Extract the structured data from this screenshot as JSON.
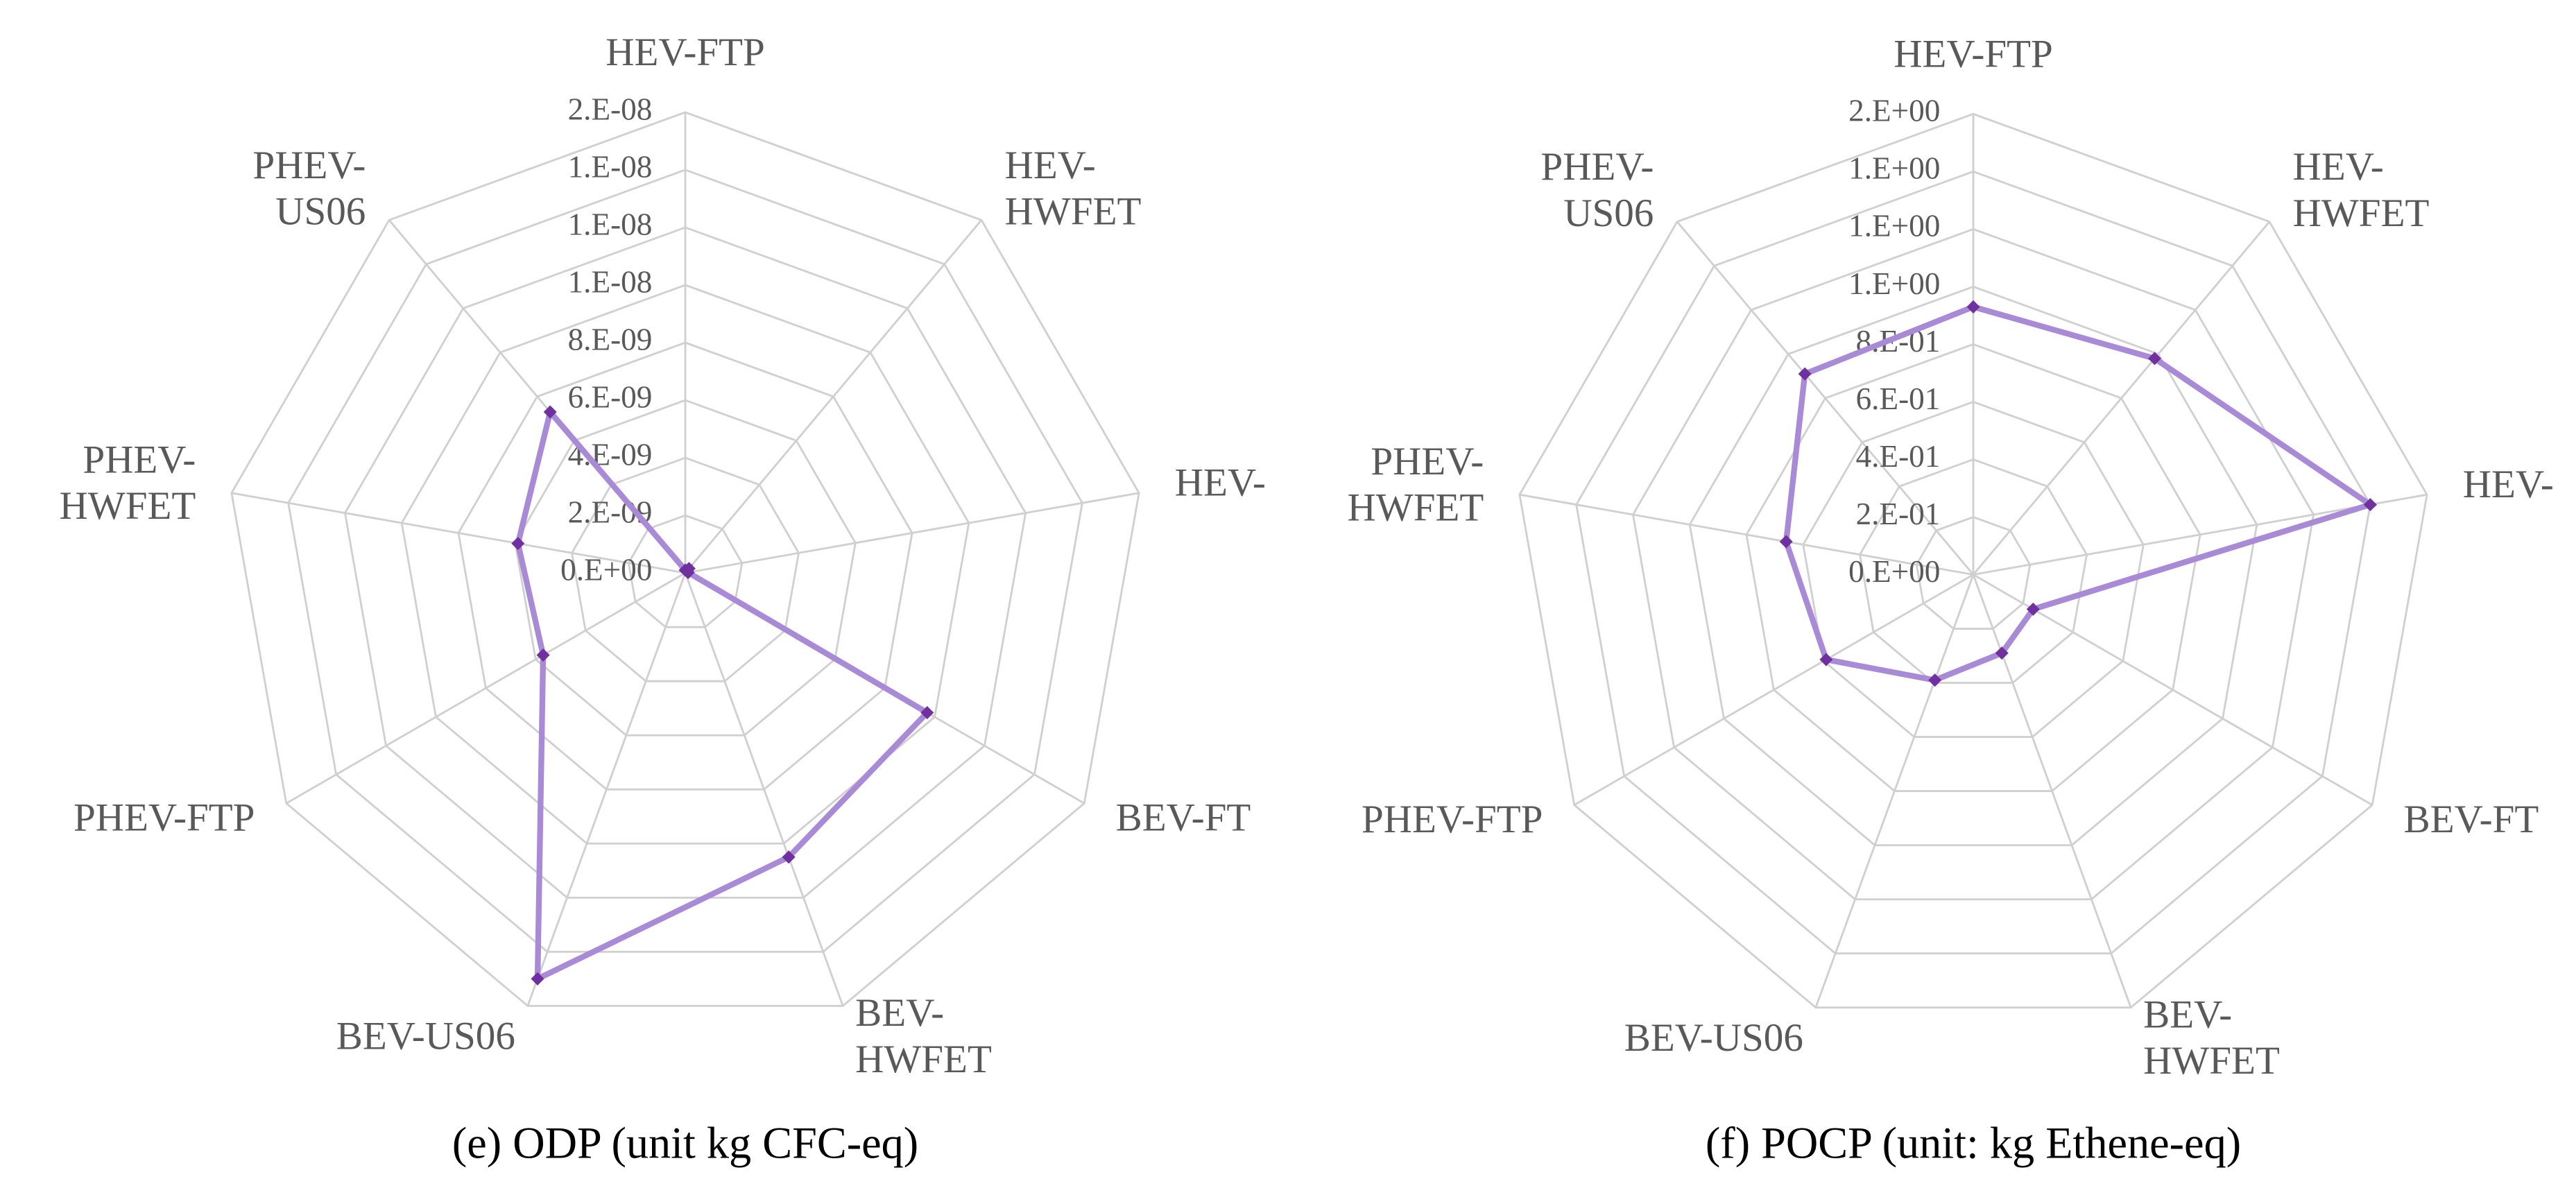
{
  "chart_data": [
    {
      "type": "radar",
      "caption": "(e) ODP (unit kg CFC-eq)",
      "categories": [
        "HEV-FTP",
        "HEV-\nHWFET",
        "HEV-",
        "BEV-FT",
        "BEV-\nHWFET",
        "BEV-US06",
        "PHEV-FTP",
        "PHEV-\nHWFET",
        "PHEV-\nUS06"
      ],
      "values": [
        1e-10,
        2e-10,
        1e-10,
        9.7e-09,
        1.05e-08,
        1.5e-08,
        5.7e-09,
        5.9e-09,
        7.3e-09
      ],
      "color": "#7030a0",
      "line_color": "#a98ad6",
      "ylim": [
        0,
        1.6e-08
      ],
      "yticks": [
        {
          "value": 0,
          "label": "0.E+00"
        },
        {
          "value": 2e-09,
          "label": "2.E-09"
        },
        {
          "value": 4e-09,
          "label": "4.E-09"
        },
        {
          "value": 6e-09,
          "label": "6.E-09"
        },
        {
          "value": 8e-09,
          "label": "8.E-09"
        },
        {
          "value": 1e-08,
          "label": "1.E-08"
        },
        {
          "value": 1.2e-08,
          "label": "1.E-08"
        },
        {
          "value": 1.4e-08,
          "label": "1.E-08"
        },
        {
          "value": 1.6e-08,
          "label": "2.E-08"
        }
      ],
      "grid": true
    },
    {
      "type": "radar",
      "caption": "(f) POCP (unit: kg Ethene-eq)",
      "categories": [
        "HEV-FTP",
        "HEV-\nHWFET",
        "HEV-",
        "BEV-FT",
        "BEV-\nHWFET",
        "BEV-US06",
        "PHEV-FTP",
        "PHEV-\nHWFET",
        "PHEV-\nUS06"
      ],
      "values": [
        0.93,
        0.98,
        1.4,
        0.24,
        0.29,
        0.39,
        0.59,
        0.66,
        0.91
      ],
      "color": "#7030a0",
      "line_color": "#a98ad6",
      "ylim": [
        0,
        1.6
      ],
      "yticks": [
        {
          "value": 0,
          "label": "0.E+00"
        },
        {
          "value": 0.2,
          "label": "2.E-01"
        },
        {
          "value": 0.4,
          "label": "4.E-01"
        },
        {
          "value": 0.6,
          "label": "6.E-01"
        },
        {
          "value": 0.8,
          "label": "8.E-01"
        },
        {
          "value": 1.0,
          "label": "1.E+00"
        },
        {
          "value": 1.2,
          "label": "1.E+00"
        },
        {
          "value": 1.4,
          "label": "1.E+00"
        },
        {
          "value": 1.6,
          "label": "2.E+00"
        }
      ],
      "grid": true
    }
  ]
}
